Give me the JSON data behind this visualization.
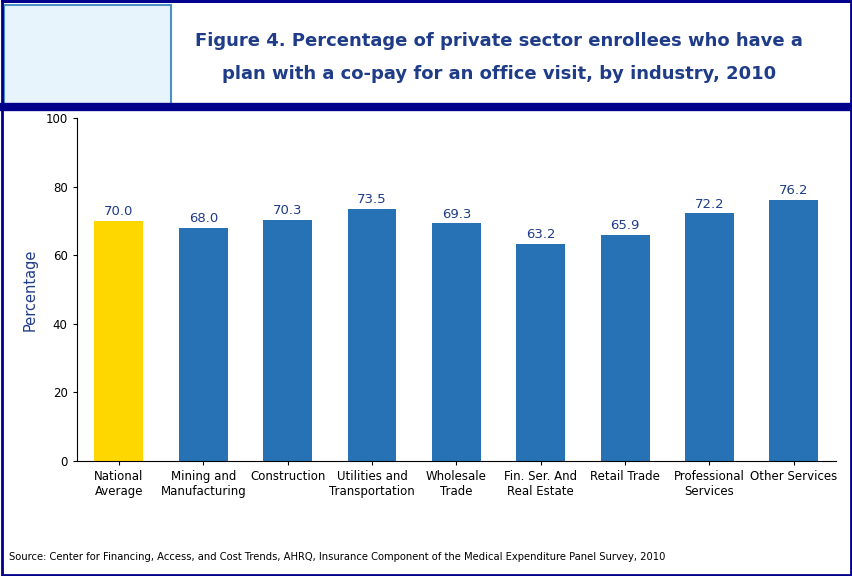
{
  "title_line1": "Figure 4. Percentage of private sector enrollees who have a",
  "title_line2": "plan with a co-pay for an office visit, by industry, 2010",
  "categories": [
    "National\nAverage",
    "Mining and\nManufacturing",
    "Construction",
    "Utilities and\nTransportation",
    "Wholesale\nTrade",
    "Fin. Ser. And\nReal Estate",
    "Retail Trade",
    "Professional\nServices",
    "Other Services"
  ],
  "values": [
    70.0,
    68.0,
    70.3,
    73.5,
    69.3,
    63.2,
    65.9,
    72.2,
    76.2
  ],
  "bar_colors": [
    "#FFD700",
    "#2672B5",
    "#2672B5",
    "#2672B5",
    "#2672B5",
    "#2672B5",
    "#2672B5",
    "#2672B5",
    "#2672B5"
  ],
  "ylabel": "Percentage",
  "ylim": [
    0,
    100
  ],
  "yticks": [
    0,
    20,
    40,
    60,
    80,
    100
  ],
  "value_label_color": "#1F3C88",
  "title_color": "#1F3C88",
  "ylabel_color": "#1F3C88",
  "source_text": "Source: Center for Financing, Access, and Cost Trends, AHRQ, Insurance Component of the Medical Expenditure Panel Survey, 2010",
  "bg_color": "#FFFFFF",
  "border_color": "#00008B",
  "divider_color": "#00008B",
  "title_fontsize": 13,
  "value_fontsize": 9.5,
  "tick_fontsize": 8.5,
  "ylabel_fontsize": 10.5
}
